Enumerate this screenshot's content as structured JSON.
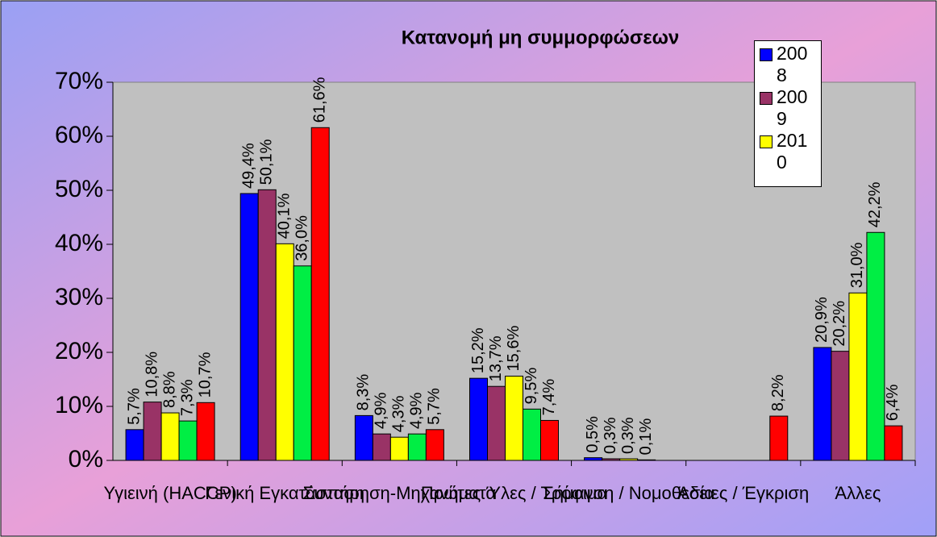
{
  "chart_data": {
    "type": "bar",
    "title": "Κατανομή μη συμμορφώσεων",
    "categories": [
      "Υγιεινή (HACCP)",
      "Γενική Εγκατάσταση",
      "Συντήρηση-Μηχανήματα",
      "Πρώτες Ύλες / Τρόφιμα",
      "Σήμανση / Νομοθεσία",
      "Άδειες / Έγκριση",
      "Άλλες"
    ],
    "series": [
      {
        "name": "2008",
        "color": "#0000ff",
        "values": [
          5.7,
          49.4,
          8.3,
          15.2,
          0.5,
          null,
          20.9
        ],
        "value_labels": [
          "5,7%",
          "49,4%",
          "8,3%",
          "15,2%",
          "0,5%",
          null,
          "20,9%"
        ]
      },
      {
        "name": "2009",
        "color": "#993366",
        "values": [
          10.8,
          50.1,
          4.9,
          13.7,
          0.3,
          null,
          20.2
        ],
        "value_labels": [
          "10,8%",
          "50,1%",
          "4,9%",
          "13,7%",
          "0,3%",
          null,
          "20,2%"
        ]
      },
      {
        "name": "2010",
        "color": "#ffff00",
        "values": [
          8.8,
          40.1,
          4.3,
          15.6,
          0.3,
          null,
          31.0
        ],
        "value_labels": [
          "8,8%",
          "40,1%",
          "4,3%",
          "15,6%",
          "0,3%",
          null,
          "31,0%"
        ]
      },
      {
        "color": "#00ee44",
        "values": [
          7.3,
          36.0,
          4.9,
          9.5,
          0.1,
          null,
          42.2
        ],
        "value_labels": [
          "7,3%",
          "36,0%",
          "4,9%",
          "9,5%",
          "0,1%",
          null,
          "42,2%"
        ]
      },
      {
        "color": "#ff0000",
        "values": [
          10.7,
          61.6,
          5.7,
          7.4,
          null,
          8.2,
          6.4
        ],
        "value_labels": [
          "10,7%",
          "61,6%",
          "5,7%",
          "7,4%",
          null,
          "8,2%",
          "6,4%"
        ]
      }
    ],
    "ylim": [
      0,
      70
    ],
    "yticks": [
      {
        "value": 0,
        "label": "0%"
      },
      {
        "value": 10,
        "label": "10%"
      },
      {
        "value": 20,
        "label": "20%"
      },
      {
        "value": 30,
        "label": "30%"
      },
      {
        "value": 40,
        "label": "40%"
      },
      {
        "value": 50,
        "label": "50%"
      },
      {
        "value": 60,
        "label": "60%"
      },
      {
        "value": 70,
        "label": "70%"
      }
    ]
  }
}
